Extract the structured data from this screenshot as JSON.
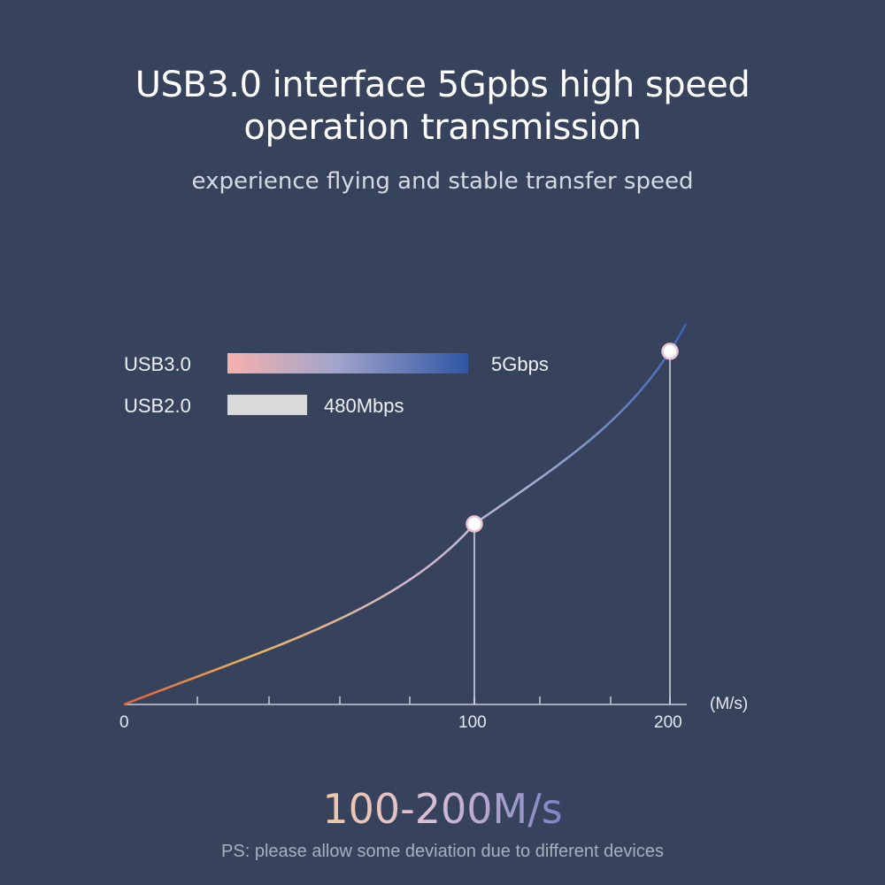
{
  "header": {
    "title_line1": "USB3.0 interface 5Gpbs high speed",
    "title_line2": "operation transmission",
    "subtitle": "experience flying and stable transfer speed"
  },
  "legend": [
    {
      "name": "USB3.0",
      "value_label": "5Gbps"
    },
    {
      "name": "USB2.0",
      "value_label": "480Mbps"
    }
  ],
  "chart_data": {
    "type": "line",
    "x_unit": "(M/s)",
    "x_ticks": [
      "0",
      "100",
      "200"
    ],
    "highlight_points": [
      100,
      200
    ],
    "xlim": [
      0,
      200
    ],
    "grid": false,
    "colors": {
      "start": "#e2613a",
      "mid": "#d9b8cf",
      "end": "#3d63b4"
    }
  },
  "headline_value": "100-200M/s",
  "footnote": "PS: please allow some deviation due to different devices"
}
